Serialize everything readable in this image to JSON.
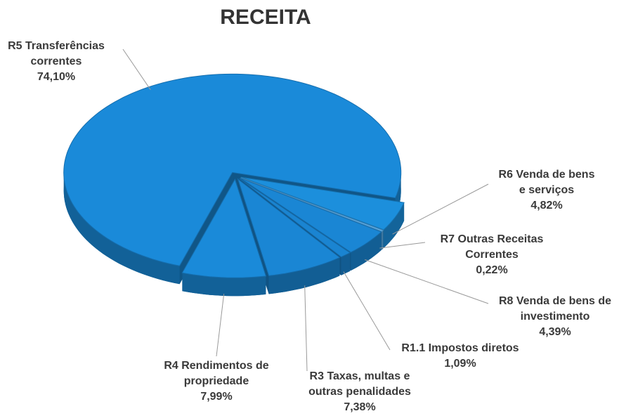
{
  "chart_data": {
    "type": "pie3d",
    "title": "RECEITA",
    "categories": [
      "R5 Transferências correntes",
      "R6 Venda de bens e serviços",
      "R7 Outras Receitas Correntes",
      "R8 Venda de bens de investimento",
      "R1.1 Impostos diretos",
      "R3 Taxas, multas e outras penalidades",
      "R4 Rendimentos de propriedade"
    ],
    "values": [
      74.1,
      4.82,
      0.22,
      4.39,
      1.09,
      7.38,
      7.99
    ],
    "value_labels": [
      "74,10%",
      "4,82%",
      "0,22%",
      "4,39%",
      "1,09%",
      "7,38%",
      "7,99%"
    ],
    "colors": [
      "#1a8ad9",
      "#1c8fdc",
      "#5aaeea",
      "#1a86d4",
      "#1a84d1",
      "#1a86d4",
      "#1a8ad9"
    ]
  }
}
